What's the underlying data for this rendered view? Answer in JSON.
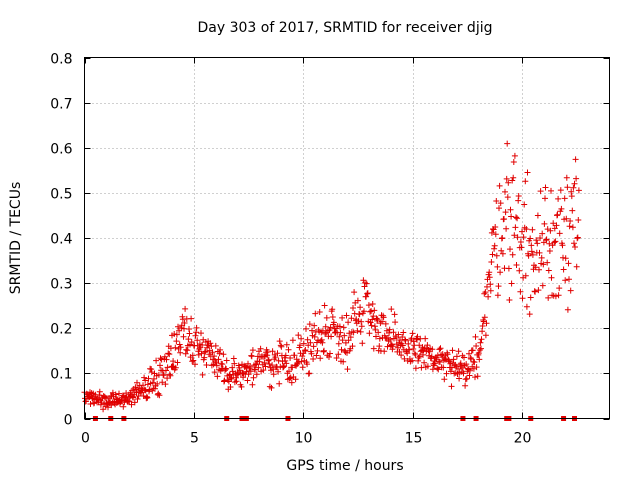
{
  "chart_data": {
    "type": "scatter",
    "title": "Day 303 of 2017, SRMTID for receiver djig",
    "xlabel": "GPS time / hours",
    "ylabel": "SRMTID / TECUs",
    "xlim": [
      0,
      24.0
    ],
    "ylim": [
      0,
      0.8
    ],
    "xticks": [
      0,
      5,
      10,
      15,
      20
    ],
    "yticks": [
      0,
      0.1,
      0.2,
      0.3,
      0.4,
      0.5,
      0.6,
      0.7,
      0.8
    ],
    "ytick_labels": [
      "0",
      "0.1",
      "0.2",
      "0.3",
      "0.4",
      "0.5",
      "0.6",
      "0.7",
      "0.8"
    ],
    "grid": true,
    "marker": "+",
    "color": "#e00000",
    "series": [
      {
        "name": "SRMTID",
        "envelope": [
          {
            "t": 0.0,
            "base": 0.05,
            "spread": 0.03
          },
          {
            "t": 1.0,
            "base": 0.04,
            "spread": 0.02
          },
          {
            "t": 2.0,
            "base": 0.04,
            "spread": 0.02
          },
          {
            "t": 2.5,
            "base": 0.06,
            "spread": 0.03
          },
          {
            "t": 3.0,
            "base": 0.08,
            "spread": 0.05
          },
          {
            "t": 3.5,
            "base": 0.1,
            "spread": 0.06
          },
          {
            "t": 4.0,
            "base": 0.14,
            "spread": 0.08
          },
          {
            "t": 4.5,
            "base": 0.2,
            "spread": 0.1
          },
          {
            "t": 5.0,
            "base": 0.16,
            "spread": 0.07
          },
          {
            "t": 6.0,
            "base": 0.14,
            "spread": 0.05
          },
          {
            "t": 6.5,
            "base": 0.1,
            "spread": 0.04
          },
          {
            "t": 7.0,
            "base": 0.1,
            "spread": 0.04
          },
          {
            "t": 8.0,
            "base": 0.12,
            "spread": 0.05
          },
          {
            "t": 9.0,
            "base": 0.12,
            "spread": 0.06
          },
          {
            "t": 10.0,
            "base": 0.14,
            "spread": 0.07
          },
          {
            "t": 11.0,
            "base": 0.2,
            "spread": 0.09
          },
          {
            "t": 12.0,
            "base": 0.18,
            "spread": 0.08
          },
          {
            "t": 12.8,
            "base": 0.26,
            "spread": 0.1
          },
          {
            "t": 13.5,
            "base": 0.2,
            "spread": 0.09
          },
          {
            "t": 14.5,
            "base": 0.15,
            "spread": 0.06
          },
          {
            "t": 15.0,
            "base": 0.16,
            "spread": 0.06
          },
          {
            "t": 16.0,
            "base": 0.13,
            "spread": 0.05
          },
          {
            "t": 17.0,
            "base": 0.11,
            "spread": 0.05
          },
          {
            "t": 17.5,
            "base": 0.1,
            "spread": 0.04
          },
          {
            "t": 18.0,
            "base": 0.15,
            "spread": 0.07
          },
          {
            "t": 18.5,
            "base": 0.3,
            "spread": 0.15
          },
          {
            "t": 19.0,
            "base": 0.45,
            "spread": 0.2
          },
          {
            "t": 19.5,
            "base": 0.45,
            "spread": 0.22
          },
          {
            "t": 20.0,
            "base": 0.4,
            "spread": 0.2
          },
          {
            "t": 20.5,
            "base": 0.35,
            "spread": 0.18
          },
          {
            "t": 21.0,
            "base": 0.38,
            "spread": 0.22
          },
          {
            "t": 21.5,
            "base": 0.4,
            "spread": 0.22
          },
          {
            "t": 22.0,
            "base": 0.45,
            "spread": 0.22
          },
          {
            "t": 22.5,
            "base": 0.45,
            "spread": 0.25
          }
        ],
        "t_start": 0.0,
        "t_end": 22.6,
        "t_step": 0.025,
        "seed": 303
      }
    ],
    "zero_markers_x": [
      0.5,
      1.2,
      1.8,
      6.5,
      7.2,
      7.4,
      9.3,
      17.3,
      17.9,
      19.3,
      19.4,
      20.4,
      21.9,
      22.4
    ]
  }
}
